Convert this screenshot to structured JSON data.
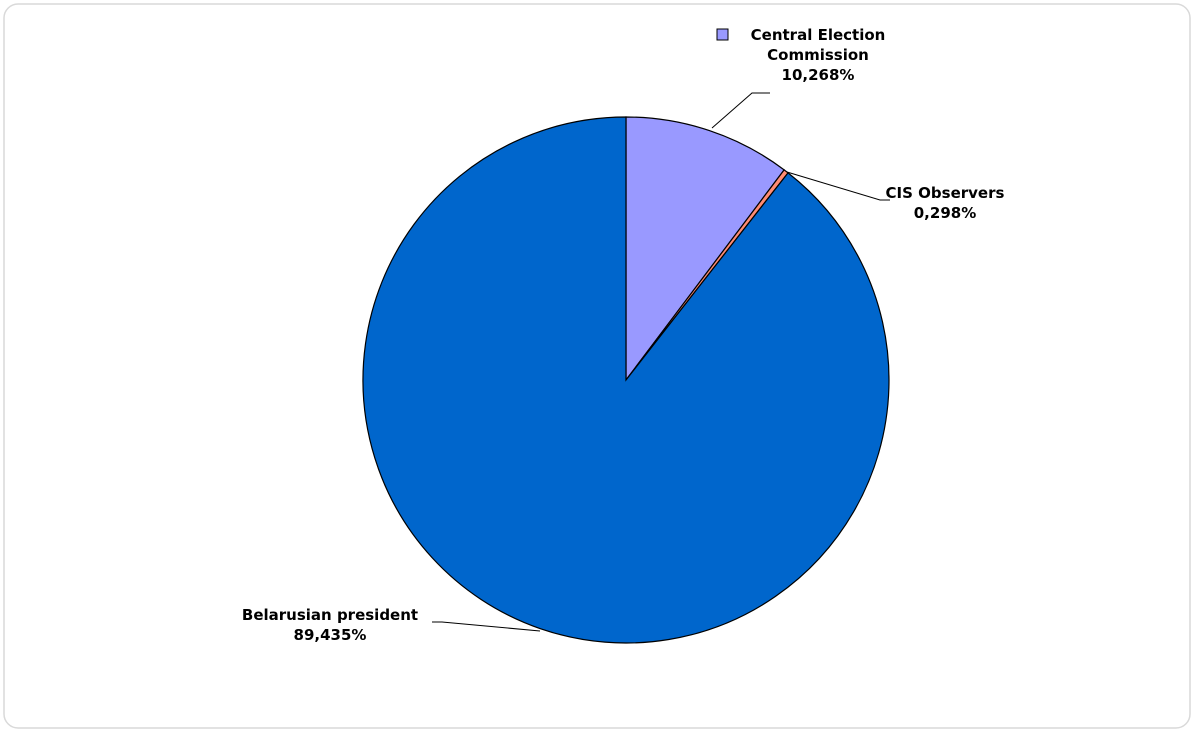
{
  "chart_data": {
    "type": "pie",
    "categories": [
      "Central Election Commission",
      "CIS Observers",
      "Belarusian president"
    ],
    "values": [
      10.268,
      0.298,
      89.435
    ],
    "value_labels": [
      "10,268%",
      "0,298%",
      "89,435%"
    ],
    "colors": [
      "#9999ff",
      "#ff8c73",
      "#0066cc"
    ]
  }
}
